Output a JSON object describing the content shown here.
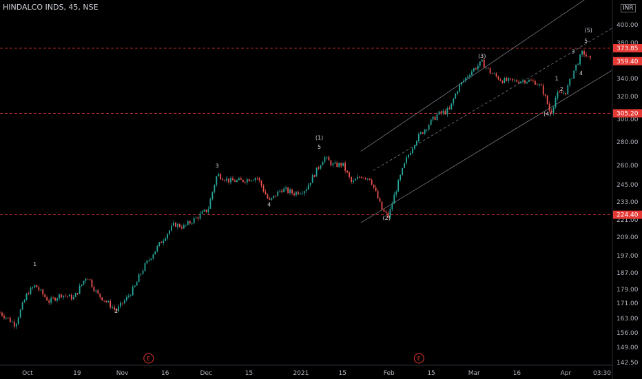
{
  "header": {
    "symbol": "HINDALCO INDS, 45, NSE",
    "currency": "INR"
  },
  "colors": {
    "up": "#26a69a",
    "down": "#ef5350",
    "hline": "#e53935",
    "channel": "#787b86",
    "bg": "#000000"
  },
  "clock": "03:30",
  "chart_data": {
    "type": "candlestick",
    "title": "HINDALCO INDS, 45, NSE",
    "ylim": [
      140,
      430
    ],
    "y_ticks": [
      {
        "label": "400.00",
        "value": 400
      },
      {
        "label": "380.00",
        "value": 380
      },
      {
        "label": "340.00",
        "value": 340
      },
      {
        "label": "320.00",
        "value": 320
      },
      {
        "label": "300.00",
        "value": 300
      },
      {
        "label": "280.00",
        "value": 280
      },
      {
        "label": "260.00",
        "value": 260
      },
      {
        "label": "245.00",
        "value": 245
      },
      {
        "label": "233.00",
        "value": 233
      },
      {
        "label": "221.00",
        "value": 221
      },
      {
        "label": "209.00",
        "value": 209
      },
      {
        "label": "197.00",
        "value": 197
      },
      {
        "label": "187.00",
        "value": 187
      },
      {
        "label": "179.00",
        "value": 179
      },
      {
        "label": "171.00",
        "value": 171
      },
      {
        "label": "163.00",
        "value": 163
      },
      {
        "label": "156.00",
        "value": 156
      },
      {
        "label": "149.00",
        "value": 149
      },
      {
        "label": "142.50",
        "value": 142.5
      }
    ],
    "x_ticks": [
      {
        "label": "Oct",
        "t": 0.045
      },
      {
        "label": "19",
        "t": 0.126
      },
      {
        "label": "Nov",
        "t": 0.2
      },
      {
        "label": "16",
        "t": 0.27
      },
      {
        "label": "Dec",
        "t": 0.337
      },
      {
        "label": "15",
        "t": 0.407
      },
      {
        "label": "2021",
        "t": 0.492
      },
      {
        "label": "15",
        "t": 0.56
      },
      {
        "label": "Feb",
        "t": 0.636
      },
      {
        "label": "15",
        "t": 0.705
      },
      {
        "label": "Mar",
        "t": 0.775
      },
      {
        "label": "16",
        "t": 0.845
      },
      {
        "label": "Apr",
        "t": 0.925
      }
    ],
    "price_key_points": [
      [
        0,
        166
      ],
      [
        0.025,
        160
      ],
      [
        0.045,
        177
      ],
      [
        0.058,
        181
      ],
      [
        0.08,
        172
      ],
      [
        0.1,
        176
      ],
      [
        0.12,
        174
      ],
      [
        0.142,
        186
      ],
      [
        0.16,
        176
      ],
      [
        0.19,
        167
      ],
      [
        0.205,
        173
      ],
      [
        0.22,
        180
      ],
      [
        0.235,
        190
      ],
      [
        0.26,
        204
      ],
      [
        0.285,
        218
      ],
      [
        0.3,
        216
      ],
      [
        0.32,
        222
      ],
      [
        0.34,
        228
      ],
      [
        0.355,
        253
      ],
      [
        0.375,
        248
      ],
      [
        0.395,
        248
      ],
      [
        0.42,
        251
      ],
      [
        0.44,
        233
      ],
      [
        0.46,
        242
      ],
      [
        0.48,
        239
      ],
      [
        0.5,
        242
      ],
      [
        0.51,
        250
      ],
      [
        0.52,
        258
      ],
      [
        0.53,
        267
      ],
      [
        0.545,
        260
      ],
      [
        0.56,
        261
      ],
      [
        0.575,
        246
      ],
      [
        0.59,
        252
      ],
      [
        0.605,
        250
      ],
      [
        0.625,
        227
      ],
      [
        0.635,
        223
      ],
      [
        0.645,
        238
      ],
      [
        0.665,
        266
      ],
      [
        0.68,
        282
      ],
      [
        0.7,
        295
      ],
      [
        0.715,
        304
      ],
      [
        0.735,
        308
      ],
      [
        0.75,
        331
      ],
      [
        0.77,
        348
      ],
      [
        0.788,
        358
      ],
      [
        0.8,
        348
      ],
      [
        0.82,
        338
      ],
      [
        0.84,
        337
      ],
      [
        0.86,
        338
      ],
      [
        0.875,
        336
      ],
      [
        0.885,
        330
      ],
      [
        0.9,
        305
      ],
      [
        0.91,
        322
      ],
      [
        0.925,
        325
      ],
      [
        0.94,
        352
      ],
      [
        0.953,
        370
      ],
      [
        0.965,
        360
      ]
    ],
    "horizontal_levels": [
      {
        "value": 373.85,
        "label": "373.85"
      },
      {
        "value": 359.4,
        "label": "359.40"
      },
      {
        "value": 305.2,
        "label": "305.20"
      },
      {
        "value": 224.4,
        "label": "224.40"
      }
    ],
    "wave_labels": [
      {
        "text": "1",
        "t": 0.057,
        "y": 191,
        "dir": "up"
      },
      {
        "text": "2",
        "t": 0.19,
        "y": 166,
        "dir": "down"
      },
      {
        "text": "3",
        "t": 0.355,
        "y": 258,
        "dir": "up"
      },
      {
        "text": "4",
        "t": 0.44,
        "y": 230,
        "dir": "down"
      },
      {
        "text": "5",
        "t": 0.522,
        "y": 274,
        "dir": "up"
      },
      {
        "text": "(1)",
        "t": 0.522,
        "y": 282,
        "dir": "up2"
      },
      {
        "text": "(2)",
        "t": 0.632,
        "y": 221,
        "dir": "down"
      },
      {
        "text": "(3)",
        "t": 0.788,
        "y": 363,
        "dir": "up"
      },
      {
        "text": "(4)",
        "t": 0.895,
        "y": 303,
        "dir": "down"
      },
      {
        "text": "1",
        "t": 0.91,
        "y": 338,
        "dir": "up"
      },
      {
        "text": "2",
        "t": 0.918,
        "y": 326,
        "dir": "down"
      },
      {
        "text": "3",
        "t": 0.937,
        "y": 368,
        "dir": "up"
      },
      {
        "text": "4",
        "t": 0.95,
        "y": 344,
        "dir": "down"
      },
      {
        "text": "5",
        "t": 0.958,
        "y": 380,
        "dir": "up"
      },
      {
        "text": "(5)",
        "t": 0.962,
        "y": 392,
        "dir": "up"
      }
    ],
    "channel_lines": [
      {
        "t1": 0.59,
        "y1": 272,
        "t2": 0.96,
        "y2": 430,
        "style": "solid"
      },
      {
        "t1": 0.61,
        "y1": 256,
        "t2": 1.0,
        "y2": 396,
        "style": "dashed"
      },
      {
        "t1": 0.59,
        "y1": 219,
        "t2": 1.0,
        "y2": 349,
        "style": "solid"
      }
    ],
    "event_markers": [
      {
        "label": "E",
        "t": 0.243
      },
      {
        "label": "E",
        "t": 0.685
      }
    ]
  }
}
